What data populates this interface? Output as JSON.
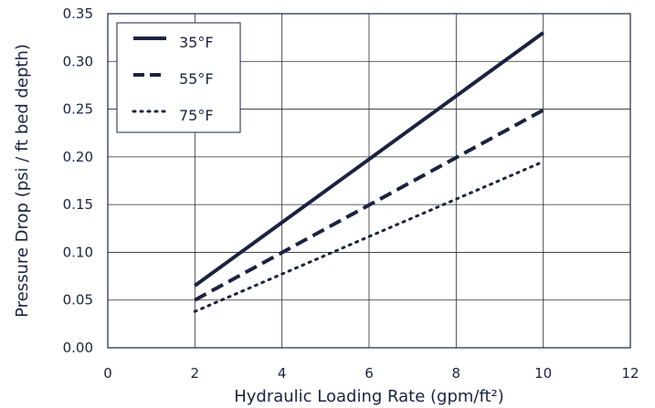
{
  "chart_data": {
    "type": "line",
    "title": "",
    "xlabel": "Hydraulic Loading Rate (gpm/ft²)",
    "ylabel": "Pressure Drop (psi / ft bed depth)",
    "xlim": [
      0,
      12
    ],
    "ylim": [
      0,
      0.35
    ],
    "x_ticks": [
      "0",
      "2",
      "4",
      "6",
      "8",
      "10",
      "12"
    ],
    "y_ticks": [
      "0.00",
      "0.05",
      "0.10",
      "0.15",
      "0.20",
      "0.25",
      "0.30",
      "0.35"
    ],
    "grid": true,
    "legend_position": "top-left",
    "line_color": "#1a2340",
    "series": [
      {
        "name": "35°F",
        "style": "solid",
        "x": [
          2,
          10
        ],
        "y": [
          0.065,
          0.33
        ]
      },
      {
        "name": "55°F",
        "style": "dashed",
        "x": [
          2,
          10
        ],
        "y": [
          0.05,
          0.249
        ]
      },
      {
        "name": "75°F",
        "style": "dotted",
        "x": [
          2,
          10
        ],
        "y": [
          0.038,
          0.195
        ]
      }
    ]
  }
}
